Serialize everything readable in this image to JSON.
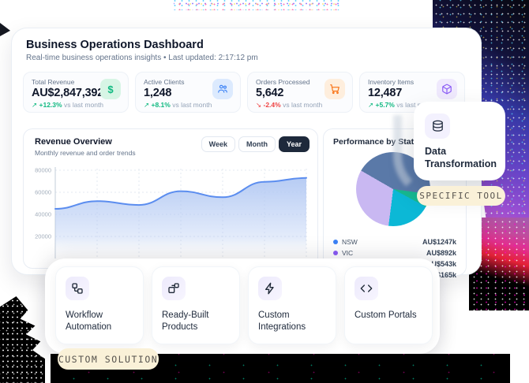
{
  "header": {
    "title": "Business Operations Dashboard",
    "subtitle": "Real-time business operations insights • Last updated: 2:17:12 pm"
  },
  "stats": [
    {
      "label": "Total Revenue",
      "value": "AU$2,847,392",
      "arrow": "↗",
      "delta": "+12.3%",
      "note": "vs last month",
      "icon": "dollar-icon",
      "accent": "#10b981",
      "icon_bg": "#d7f5e5",
      "delta_color": "#10b981"
    },
    {
      "label": "Active Clients",
      "value": "1,248",
      "arrow": "↗",
      "delta": "+8.1%",
      "note": "vs last month",
      "icon": "users-icon",
      "accent": "#3b82f6",
      "icon_bg": "#dceafe",
      "delta_color": "#10b981"
    },
    {
      "label": "Orders Processed",
      "value": "5,642",
      "arrow": "↘",
      "delta": "-2.4%",
      "note": "vs last month",
      "icon": "cart-icon",
      "accent": "#f97316",
      "icon_bg": "#feeedd",
      "delta_color": "#ef4444"
    },
    {
      "label": "Inventory Items",
      "value": "12,487",
      "arrow": "↗",
      "delta": "+5.7%",
      "note": "vs last month",
      "icon": "package-icon",
      "accent": "#8b5cf6",
      "icon_bg": "#efe9fd",
      "delta_color": "#10b981"
    }
  ],
  "revenue": {
    "title": "Revenue Overview",
    "subtitle": "Monthly revenue and order trends",
    "tabs": [
      {
        "label": "Week",
        "active": false
      },
      {
        "label": "Month",
        "active": false
      },
      {
        "label": "Year",
        "active": true
      }
    ]
  },
  "performance": {
    "title": "Performance by State",
    "legend": [
      {
        "label": "NSW",
        "dot": "#3b82f6",
        "value": "AU$1247k"
      },
      {
        "label": "VIC",
        "dot": "#8b5cf6",
        "value": "AU$892k"
      },
      {
        "label": "",
        "dot": "",
        "value": "AU$543k"
      },
      {
        "label": "",
        "dot": "",
        "value": "AU$165k"
      }
    ]
  },
  "chart_data": [
    {
      "type": "area",
      "title": "Revenue Overview",
      "values": [
        45000,
        52000,
        48500,
        61000,
        55500,
        69500,
        73000
      ],
      "ylim": [
        0,
        80000
      ],
      "y_ticks": [
        80000,
        60000,
        40000,
        20000
      ],
      "grid": "dotted",
      "line_color": "#5b8def",
      "fill_color": "#b3c9f3",
      "x_labels": [],
      "legend_position": "none"
    },
    {
      "type": "pie",
      "title": "Performance by State",
      "start_angle": 300,
      "slices": [
        {
          "label": "NSW",
          "value": 1247,
          "color": "#5a79a8"
        },
        {
          "label": "",
          "value": 165,
          "color": "#17b890"
        },
        {
          "label": "",
          "value": 543,
          "color": "#0cb8d6"
        },
        {
          "label": "VIC",
          "value": 892,
          "color": "#c9b8f2"
        }
      ]
    }
  ],
  "dt_card": {
    "title": "Data Transformation",
    "badge": "SPECIFIC TOOL",
    "icon": "database-icon"
  },
  "solutions": {
    "badge": "CUSTOM SOLUTION",
    "items": [
      {
        "label": "Workflow Automation",
        "icon": "workflow-icon"
      },
      {
        "label": "Ready-Built Products",
        "icon": "blocks-icon"
      },
      {
        "label": "Custom Integrations",
        "icon": "zap-icon"
      },
      {
        "label": "Custom Portals",
        "icon": "code-icon"
      }
    ]
  },
  "colors": {
    "up": "#10b981",
    "down": "#ef4444",
    "badge_bg": "#faf1d8",
    "tab_active_bg": "#1e293b"
  }
}
